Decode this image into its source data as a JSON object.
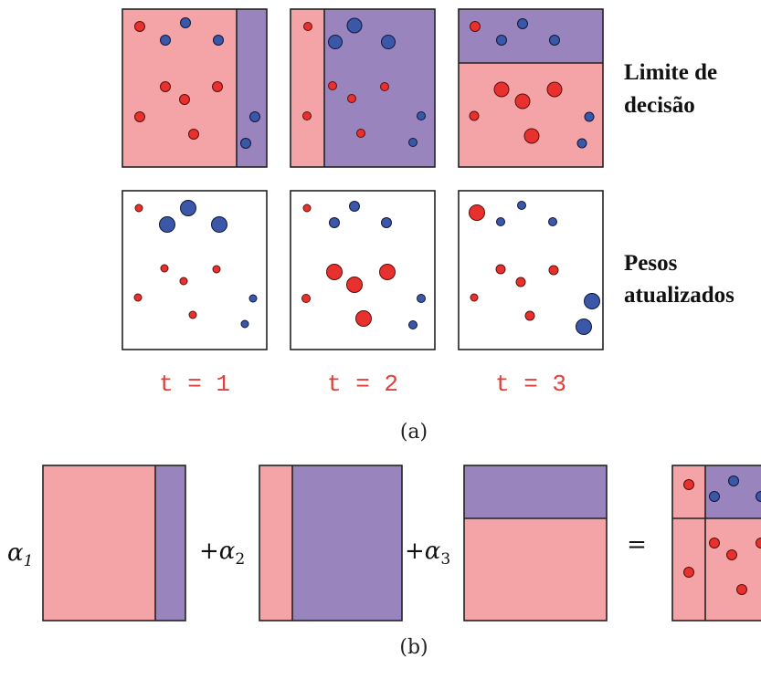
{
  "labels": {
    "row1_line1": "Limite de",
    "row1_line2": "decisão",
    "row2_line1": "Pesos",
    "row2_line2": "atualizados",
    "t_labels": [
      "t = 1",
      "t = 2",
      "t = 3"
    ],
    "caption_a": "(a)",
    "caption_b": "(b)",
    "alpha_symbol": "α",
    "alpha_subs": [
      "1",
      "2",
      "3"
    ],
    "plus": "+",
    "equals": "="
  },
  "colors": {
    "pink_region": "#f4a4a6",
    "purple_region": "#9a84bd",
    "red_point": "#e8312c",
    "blue_point": "#3a57a8",
    "t_label": "#e0403a",
    "border": "#222222"
  }
}
